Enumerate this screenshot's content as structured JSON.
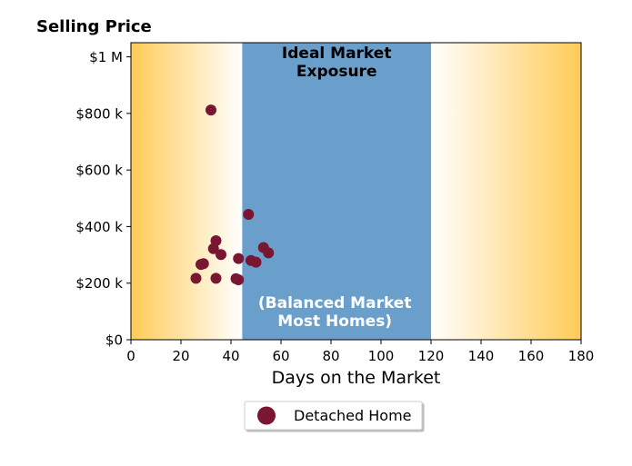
{
  "chart_data": {
    "type": "scatter",
    "title": "Selling Price",
    "xlabel": "Days on the Market",
    "ylabel": "",
    "xlim": [
      0,
      180
    ],
    "ylim": [
      0,
      1050000
    ],
    "xticks": [
      0,
      20,
      40,
      60,
      80,
      100,
      120,
      140,
      160,
      180
    ],
    "xtick_labels": [
      "0",
      "20",
      "40",
      "60",
      "80",
      "100",
      "120",
      "140",
      "160",
      "180"
    ],
    "yticks": [
      0,
      200000,
      400000,
      600000,
      800000,
      1000000
    ],
    "ytick_labels": [
      "$0",
      "$200 k",
      "$400 k",
      "$600 k",
      "$800 k",
      "$1 M"
    ],
    "grid": false,
    "legend_position": "bottom-center",
    "background_band": {
      "x_range": [
        44.5,
        120
      ],
      "color": "#6a9fcc",
      "top_label": [
        "Ideal Market",
        "Exposure"
      ],
      "bottom_label": [
        "(Balanced Market",
        "Most Homes)"
      ]
    },
    "gradient_color": "#ffcb57",
    "series": [
      {
        "name": "Detached Home",
        "color": "#791631",
        "points": [
          {
            "x": 32,
            "y": 812000
          },
          {
            "x": 47,
            "y": 443000
          },
          {
            "x": 34,
            "y": 350000
          },
          {
            "x": 33,
            "y": 322000
          },
          {
            "x": 53,
            "y": 326000
          },
          {
            "x": 36,
            "y": 301000
          },
          {
            "x": 55,
            "y": 307000
          },
          {
            "x": 43,
            "y": 287000
          },
          {
            "x": 48,
            "y": 280000
          },
          {
            "x": 50,
            "y": 274000
          },
          {
            "x": 28,
            "y": 266000
          },
          {
            "x": 29,
            "y": 269000
          },
          {
            "x": 26,
            "y": 217000
          },
          {
            "x": 34,
            "y": 217000
          },
          {
            "x": 42,
            "y": 216000
          },
          {
            "x": 43,
            "y": 212000
          }
        ]
      }
    ]
  }
}
